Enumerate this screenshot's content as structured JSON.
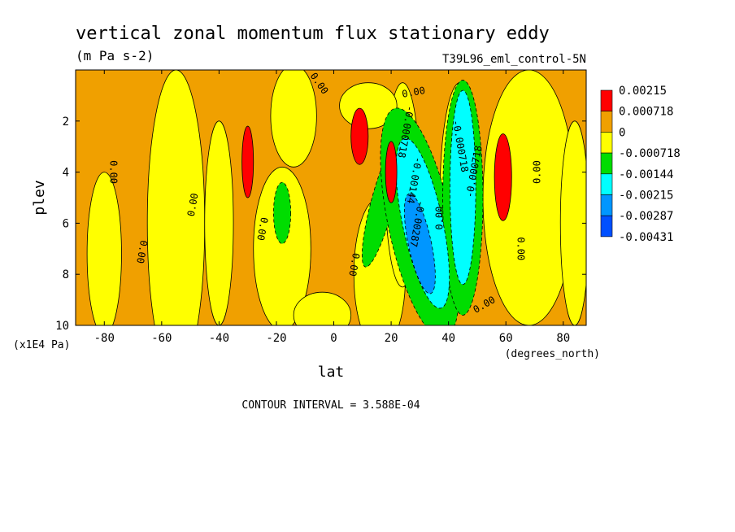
{
  "chart_data": {
    "type": "heatmap",
    "title": "vertical zonal momentum flux stationary eddy",
    "units": "(m Pa s-2)",
    "dataset": "T39L96_eml_control-5N",
    "xlabel": "lat",
    "x_units": "(degrees_north)",
    "ylabel": "plev",
    "y_units": "(x1E4 Pa)",
    "xlim": [
      -90,
      88
    ],
    "ylim": [
      10,
      0
    ],
    "x_ticks": [
      -80,
      -60,
      -40,
      -20,
      0,
      20,
      40,
      60,
      80
    ],
    "y_ticks": [
      2,
      4,
      6,
      8,
      10
    ],
    "contour_interval_text": "CONTOUR INTERVAL = 3.588E-04",
    "legend": {
      "placement": "right",
      "levels": [
        "0.00215",
        "0.000718",
        "0",
        "-0.000718",
        "-0.00144",
        "-0.00215",
        "-0.00287",
        "-0.00431"
      ],
      "colors": [
        "#ff0000",
        "#f0a000",
        "#ffff00",
        "#00dd00",
        "#00ffff",
        "#0096ff",
        "#0050ff"
      ]
    },
    "contour_labels": [
      {
        "text": "0.00",
        "lat": -6,
        "plev": 0.6,
        "rot": 55
      },
      {
        "text": "0.00",
        "lat": 28,
        "plev": 1.0,
        "rot": -10
      },
      {
        "text": "0.00",
        "lat": -78,
        "plev": 4.0,
        "rot": 90
      },
      {
        "text": "0.00",
        "lat": -48,
        "plev": 5.3,
        "rot": -80
      },
      {
        "text": "0.00",
        "lat": -26,
        "plev": 6.2,
        "rot": 100
      },
      {
        "text": "0.00",
        "lat": -68,
        "plev": 7.1,
        "rot": 100
      },
      {
        "text": "0.00",
        "lat": 6,
        "plev": 7.6,
        "rot": 100
      },
      {
        "text": "-0.000718",
        "lat": 24,
        "plev": 2.4,
        "rot": 100
      },
      {
        "text": "-0.00144",
        "lat": 27,
        "plev": 4.3,
        "rot": 100
      },
      {
        "text": "-0.00287",
        "lat": 28,
        "plev": 6.0,
        "rot": 100
      },
      {
        "text": "0.00",
        "lat": 38,
        "plev": 5.8,
        "rot": -90
      },
      {
        "text": "-0.000718",
        "lat": 43,
        "plev": 3.0,
        "rot": 80
      },
      {
        "text": "-0.000718",
        "lat": 50,
        "plev": 4.0,
        "rot": -80
      },
      {
        "text": "0.00",
        "lat": 64,
        "plev": 7.0,
        "rot": 90
      },
      {
        "text": "0.00",
        "lat": 72,
        "plev": 4.0,
        "rot": -90
      },
      {
        "text": "0.00",
        "lat": 53,
        "plev": 9.3,
        "rot": -30
      }
    ]
  }
}
